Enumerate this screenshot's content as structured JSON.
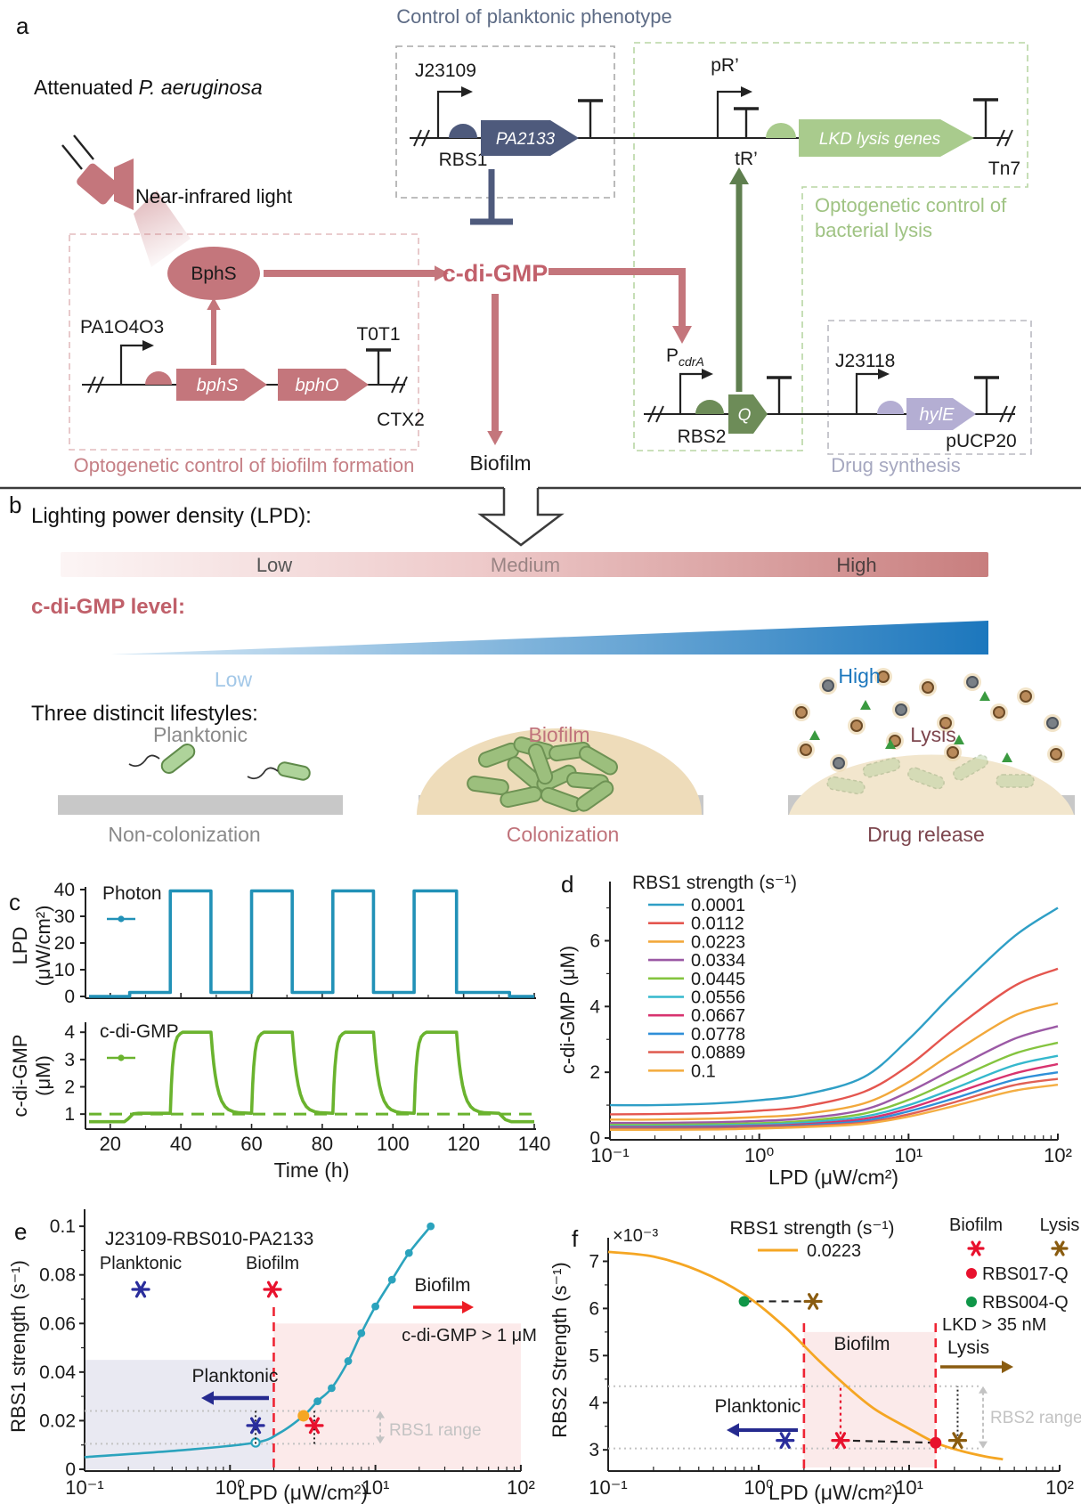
{
  "panel_letters": {
    "a": "a",
    "b": "b",
    "c": "c",
    "d": "d",
    "e": "e",
    "f": "f"
  },
  "panels": {
    "a": {
      "attenuated_prefix": "Attenuated ",
      "attenuated_species": "P. aeruginosa",
      "nir_light": "Near-infrared light",
      "planktonic_box_title": "Control of planktonic phenotype",
      "j23109": "J23109",
      "rbs1": "RBS1",
      "pa2133": "PA2133",
      "pr": "pR’",
      "tr": "tR’",
      "lkd": "LKD lysis genes",
      "tn7": "Tn7",
      "lysis_box_title_1": "Optogenetic control of",
      "lysis_box_title_2": "bacterial lysis",
      "pa1o4o3": "PA1O4O3",
      "bphs_gene": "bphS",
      "bpho_gene": "bphO",
      "t0t1": "T0T1",
      "ctx2": "CTX2",
      "bphs_enzyme": "BphS",
      "biofilm_box_title": "Optogenetic control of biofilm formation",
      "pcdra_p": "P",
      "pcdra_sub": "cdrA",
      "rbs2": "RBS2",
      "q": "Q",
      "j23118": "J23118",
      "hyle": "hylE",
      "pucp20": "pUCP20",
      "drug_box_title": "Drug synthesis",
      "cdigmp": "c-di-GMP",
      "biofilm_out": "Biofilm"
    },
    "b": {
      "lpd_label": "Lighting power density (LPD):",
      "bar": {
        "low": "Low",
        "medium": "Medium",
        "high": "High"
      },
      "cdg_label": "c-di-GMP level:",
      "wedge_low": "Low",
      "wedge_high": "High",
      "lifestyles_label": "Three distincit lifestyles:",
      "lifestyles": [
        {
          "name": "Planktonic",
          "caption": "Non-colonization"
        },
        {
          "name": "Biofilm",
          "caption": "Colonization"
        },
        {
          "name": "Lysis",
          "caption": "Drug release"
        }
      ],
      "colors": {
        "bar_start": "#fcf5f5",
        "bar_end": "#c87e7e",
        "wedge_start": "#d7e9f6",
        "wedge_end": "#1c77bd"
      }
    }
  },
  "chart_data": [
    {
      "type": "line",
      "series_name": "Photon",
      "color": "#2191b7",
      "xlabel": "Time (h)",
      "ylabel_line1": "LPD",
      "ylabel_line2": "(μW/cm²)",
      "xlim": [
        14,
        140
      ],
      "ylim": [
        0,
        40
      ],
      "yticks": [
        "0",
        "10",
        "20",
        "30",
        "40"
      ],
      "ytick_vals": [
        0,
        10,
        20,
        30,
        40
      ],
      "xticks": [
        "20",
        "40",
        "60",
        "80",
        "100",
        "120",
        "140"
      ],
      "xtick_vals": [
        20,
        40,
        60,
        80,
        100,
        120,
        140
      ],
      "pulse_windows": [
        [
          37,
          48.5
        ],
        [
          60,
          71.5
        ],
        [
          83,
          94.5
        ],
        [
          106,
          118
        ]
      ],
      "high_level": 39.5,
      "low_level": 1.5,
      "zero_until": 25.5,
      "zero_after": 133
    },
    {
      "type": "line",
      "series_name": "c-di-GMP",
      "color": "#6ab32e",
      "xlabel": "Time (h)",
      "ylabel_line1": "c-di-GMP",
      "ylabel_line2": "(μM)",
      "xlim": [
        14,
        140
      ],
      "ylim": [
        0.45,
        4.3
      ],
      "yticks": [
        "1",
        "2",
        "3",
        "4"
      ],
      "ytick_vals": [
        1,
        2,
        3,
        4
      ],
      "xticks": [
        "20",
        "40",
        "60",
        "80",
        "100",
        "120",
        "140"
      ],
      "xtick_vals": [
        20,
        40,
        60,
        80,
        100,
        120,
        140
      ],
      "pulse_windows": [
        [
          37,
          48.5
        ],
        [
          60,
          71.5
        ],
        [
          83,
          94.5
        ],
        [
          106,
          118
        ]
      ],
      "baseline": 0.72,
      "dark_level": 1.03,
      "peak": 4.0,
      "threshold": 1.0,
      "rise_tau": 0.7,
      "decay_tau": 1.6
    },
    {
      "type": "line",
      "legend_title": "RBS1 strength (s⁻¹)",
      "xlabel": "LPD (μW/cm²)",
      "ylabel": "c-di-GMP (μM)",
      "xscale": "log",
      "xlim": [
        0.1,
        100
      ],
      "ylim": [
        0,
        7.8
      ],
      "yticks": [
        "0",
        "2",
        "4",
        "6"
      ],
      "ytick_vals": [
        0,
        2,
        4,
        6
      ],
      "xticks": [
        "10⁻¹",
        "10⁰",
        "10¹",
        "10²"
      ],
      "xtick_vals": [
        0.1,
        1,
        10,
        100
      ],
      "x": [
        0.1,
        0.2,
        0.5,
        1,
        2,
        5,
        10,
        20,
        50,
        100
      ],
      "series": [
        {
          "name": "0.0001",
          "color": "#2f9fc6",
          "y": [
            1.0,
            1.0,
            1.05,
            1.15,
            1.32,
            1.85,
            3.0,
            4.4,
            6.1,
            7.0
          ]
        },
        {
          "name": "0.0112",
          "color": "#e4564f",
          "y": [
            0.72,
            0.73,
            0.76,
            0.83,
            0.96,
            1.4,
            2.2,
            3.3,
            4.6,
            5.15
          ]
        },
        {
          "name": "0.0223",
          "color": "#f2a83b",
          "y": [
            0.56,
            0.56,
            0.59,
            0.64,
            0.73,
            1.05,
            1.7,
            2.6,
            3.7,
            4.1
          ]
        },
        {
          "name": "0.0334",
          "color": "#9b59a5",
          "y": [
            0.46,
            0.46,
            0.48,
            0.52,
            0.6,
            0.86,
            1.4,
            2.1,
            3.0,
            3.4
          ]
        },
        {
          "name": "0.0445",
          "color": "#84c43f",
          "y": [
            0.4,
            0.4,
            0.42,
            0.45,
            0.52,
            0.74,
            1.16,
            1.76,
            2.55,
            2.9
          ]
        },
        {
          "name": "0.0556",
          "color": "#35b8cd",
          "y": [
            0.36,
            0.36,
            0.38,
            0.41,
            0.47,
            0.65,
            1.0,
            1.5,
            2.2,
            2.5
          ]
        },
        {
          "name": "0.0667",
          "color": "#d8336f",
          "y": [
            0.33,
            0.33,
            0.34,
            0.37,
            0.42,
            0.58,
            0.9,
            1.35,
            1.95,
            2.25
          ]
        },
        {
          "name": "0.0778",
          "color": "#2f8fd8",
          "y": [
            0.3,
            0.3,
            0.31,
            0.34,
            0.39,
            0.52,
            0.81,
            1.2,
            1.76,
            2.0
          ]
        },
        {
          "name": "0.0889",
          "color": "#e06055",
          "y": [
            0.28,
            0.28,
            0.29,
            0.32,
            0.36,
            0.47,
            0.72,
            1.08,
            1.6,
            1.8
          ]
        },
        {
          "name": "0.1",
          "color": "#f4ae43",
          "y": [
            0.25,
            0.25,
            0.26,
            0.29,
            0.33,
            0.43,
            0.65,
            0.97,
            1.43,
            1.62
          ]
        }
      ]
    },
    {
      "type": "scatter-line",
      "legend_title": "J23109-RBS010-PA2133",
      "legend_items": [
        {
          "label": "Planktonic",
          "color": "#2a2d9c"
        },
        {
          "label": "Biofilm",
          "color": "#e8112d"
        }
      ],
      "xlabel": "LPD (μW/cm²)",
      "ylabel": "RBS1 strength (s⁻¹)",
      "xscale": "log",
      "xlim": [
        0.1,
        100
      ],
      "ylim": [
        0,
        0.107
      ],
      "yticks": [
        "0",
        "0.02",
        "0.04",
        "0.06",
        "0.08",
        "0.1"
      ],
      "ytick_vals": [
        0,
        0.02,
        0.04,
        0.06,
        0.08,
        0.1
      ],
      "xticks": [
        "10⁻¹",
        "10⁰",
        "10¹",
        "10²"
      ],
      "xtick_vals": [
        0.1,
        1,
        10,
        100
      ],
      "curve_color": "#2ba3bd",
      "curve": {
        "x": [
          0.1,
          0.5,
          1.5,
          2.2,
          3.2,
          4,
          5,
          6.5,
          8,
          10,
          13,
          17,
          24
        ],
        "y": [
          0.005,
          0.008,
          0.011,
          0.015,
          0.022,
          0.028,
          0.0334,
          0.0445,
          0.056,
          0.067,
          0.078,
          0.089,
          0.1
        ]
      },
      "marker_points": [
        [
          4,
          0.028
        ],
        [
          5,
          0.0334
        ],
        [
          6.5,
          0.0445
        ],
        [
          8,
          0.056
        ],
        [
          10,
          0.067
        ],
        [
          13,
          0.078
        ],
        [
          17,
          0.089
        ],
        [
          24,
          0.1
        ]
      ],
      "open_circle": [
        1.5,
        0.011
      ],
      "orange_dot": [
        3.2,
        0.022
      ],
      "blue_star": [
        1.5,
        0.018
      ],
      "red_star": [
        3.8,
        0.018
      ],
      "threshold_x": 2,
      "blue_region": {
        "x": [
          0.1,
          2
        ],
        "ytop": 0.045,
        "color": "#e9e9f2"
      },
      "pink_region": {
        "x": [
          2,
          100
        ],
        "ytop": 0.06,
        "color": "#fceaea"
      },
      "range_lines": [
        0.0105,
        0.024
      ],
      "annotations": {
        "planktonic": "Planktonic",
        "biofilm": "Biofilm",
        "cdg": "c-di-GMP > 1 μM",
        "range": "RBS1 range"
      }
    },
    {
      "type": "scatter-line",
      "scale_note": "×10⁻³",
      "legend_title": "RBS1 strength (s⁻¹)",
      "legend_value": "0.0223",
      "curve_color": "#f5a623",
      "legend_right": [
        {
          "label": "Biofilm",
          "marker": "star",
          "color": "#e8112d"
        },
        {
          "label": "Lysis",
          "marker": "star",
          "color": "#8a5c10"
        },
        {
          "label": "RBS017-Q",
          "marker": "dot",
          "color": "#e8112d"
        },
        {
          "label": "RBS004-Q",
          "marker": "dot",
          "color": "#0f9648"
        }
      ],
      "xlabel": "LPD (μW/cm²)",
      "ylabel": "RBS2 Strength (s⁻¹)",
      "xscale": "log",
      "xlim": [
        0.1,
        100
      ],
      "ylim": [
        2.55,
        7.5
      ],
      "yticks": [
        "3",
        "4",
        "5",
        "6",
        "7"
      ],
      "ytick_vals": [
        3,
        4,
        5,
        6,
        7
      ],
      "xticks": [
        "10⁻¹",
        "10⁰",
        "10¹",
        "10²"
      ],
      "xtick_vals": [
        0.1,
        1,
        10,
        100
      ],
      "curve": {
        "x": [
          0.1,
          0.2,
          0.4,
          0.8,
          1.5,
          2.5,
          4,
          6,
          10,
          15,
          22,
          32,
          42
        ],
        "y": [
          7.2,
          7.1,
          6.8,
          6.3,
          5.6,
          4.9,
          4.3,
          3.85,
          3.45,
          3.15,
          2.98,
          2.86,
          2.8
        ]
      },
      "green_dot": [
        0.8,
        6.15
      ],
      "brown_star_top": [
        2.3,
        6.15
      ],
      "blue_star": [
        1.5,
        3.2
      ],
      "red_star": [
        3.5,
        3.2
      ],
      "red_dot": [
        15,
        3.15
      ],
      "brown_star_bottom": [
        21,
        3.2
      ],
      "red_dashed_x": [
        2,
        15
      ],
      "pink_region_top": 5.5,
      "range_lines": [
        3.03,
        4.35
      ],
      "annotations": {
        "planktonic": "Planktonic",
        "biofilm": "Biofilm",
        "lkd": "LKD > 35 nM",
        "lysis": "Lysis",
        "range": "RBS2 range"
      }
    }
  ]
}
